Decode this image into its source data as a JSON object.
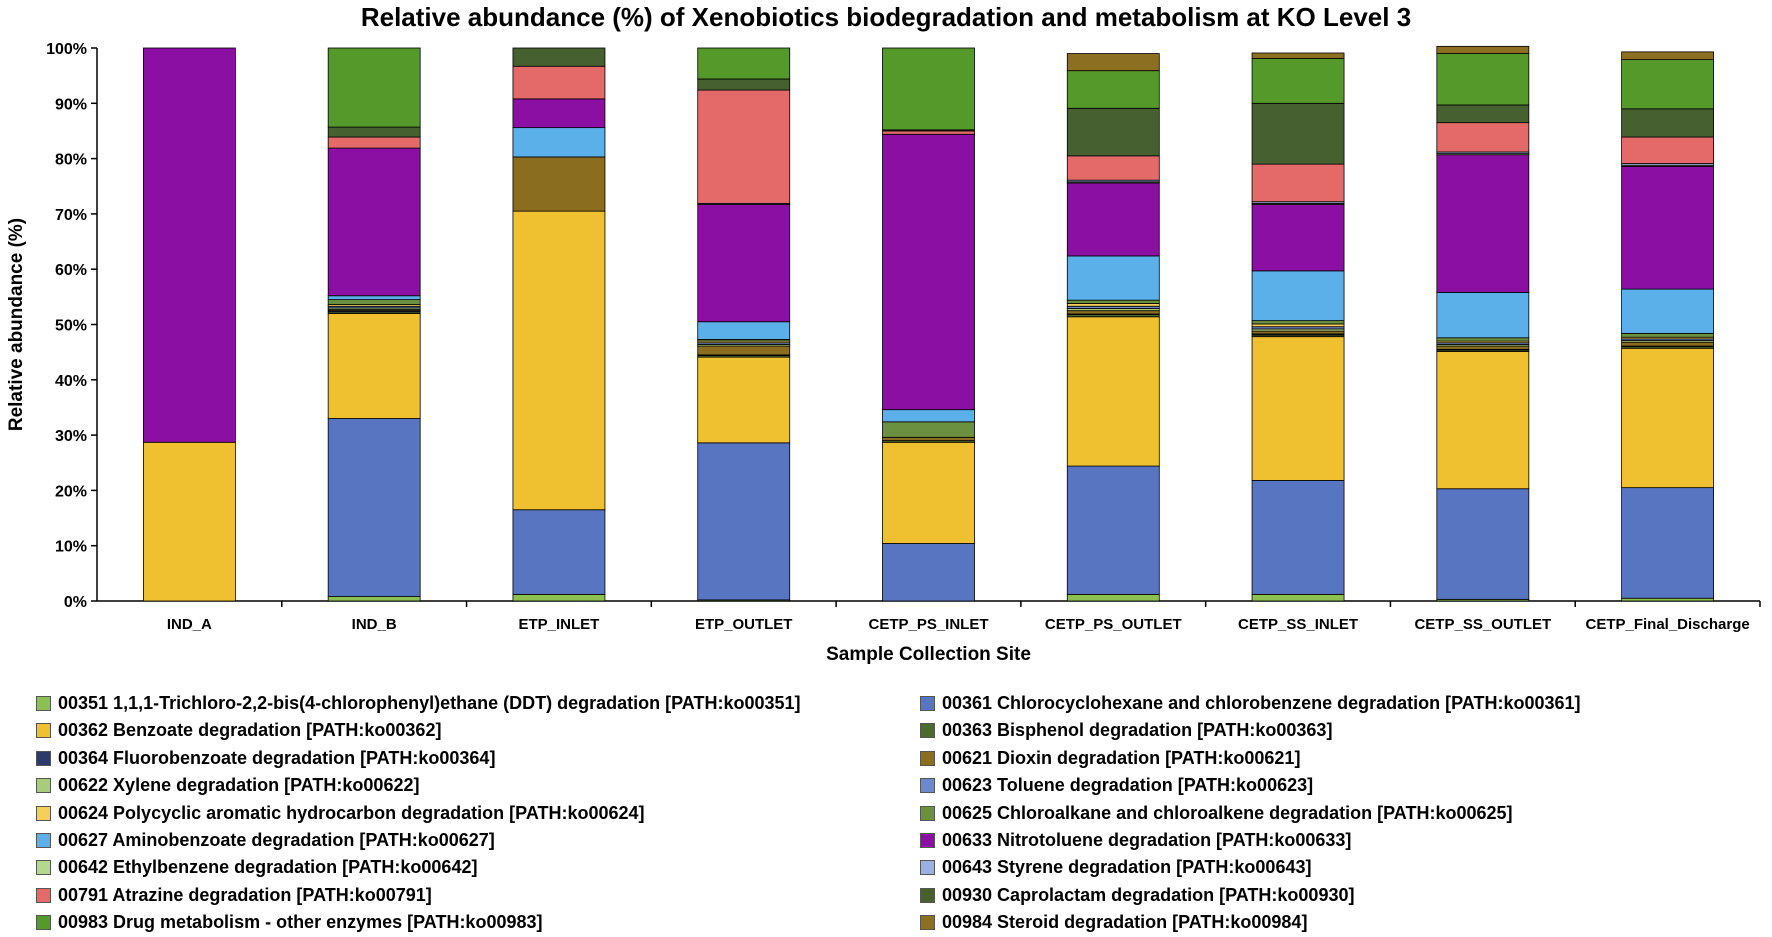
{
  "chart_data": {
    "type": "bar",
    "stacked": true,
    "title": "Relative abundance (%) of Xenobiotics biodegradation and metabolism at KO Level 3",
    "xlabel": "Sample Collection Site",
    "ylabel": "Relative abundance (%)",
    "ylim": [
      0,
      100
    ],
    "yticks": [
      "0%",
      "10%",
      "20%",
      "30%",
      "40%",
      "50%",
      "60%",
      "70%",
      "80%",
      "90%",
      "100%"
    ],
    "grid": false,
    "legend_position": "bottom",
    "categories": [
      "IND_A",
      "IND_B",
      "ETP_INLET",
      "ETP_OUTLET",
      "CETP_PS_INLET",
      "CETP_PS_OUTLET",
      "CETP_SS_INLET",
      "CETP_SS_OUTLET",
      "CETP_Final_Discharge"
    ],
    "series": [
      {
        "name": "00351 1,1,1-Trichloro-2,2-bis(4-chlorophenyl)ethane (DDT) degradation [PATH:ko00351]",
        "color": "#8cc152",
        "values": [
          0,
          0.8,
          1.2,
          0.2,
          0,
          1.2,
          1.2,
          0.3,
          0.5
        ]
      },
      {
        "name": "00361 Chlorocyclohexane and chlorobenzene degradation [PATH:ko00361]",
        "color": "#5875c2",
        "values": [
          0,
          32.2,
          15.3,
          28.4,
          10.4,
          23.2,
          20.6,
          20.0,
          20.0
        ]
      },
      {
        "name": "00362 Benzoate degradation [PATH:ko00362]",
        "color": "#efc02f",
        "values": [
          28.7,
          19.0,
          54.0,
          15.5,
          18.3,
          27.0,
          26.0,
          24.8,
          25.2
        ]
      },
      {
        "name": "00363 Bisphenol degradation [PATH:ko00363]",
        "color": "#4a6a2f",
        "values": [
          0,
          0.3,
          0,
          0.3,
          0.3,
          0.4,
          0.3,
          0.3,
          0.3
        ]
      },
      {
        "name": "00364 Fluorobenzoate degradation [PATH:ko00364]",
        "color": "#2b3a6b",
        "values": [
          0,
          0.2,
          0,
          0.1,
          0,
          0.1,
          0.2,
          0.1,
          0.1
        ]
      },
      {
        "name": "00621 Dioxin degradation [PATH:ko00621]",
        "color": "#8a6d1e",
        "values": [
          0,
          0.2,
          9.8,
          1.6,
          0.6,
          0.6,
          0.5,
          0.6,
          0.7
        ]
      },
      {
        "name": "00622 Xylene degradation [PATH:ko00622]",
        "color": "#a8cc7a",
        "values": [
          0,
          0.3,
          0,
          0.3,
          0,
          0.4,
          0.4,
          0.3,
          0.3
        ]
      },
      {
        "name": "00623 Toluene degradation [PATH:ko00623]",
        "color": "#6f88cc",
        "values": [
          0,
          0.3,
          0,
          0.3,
          0,
          0.4,
          0.4,
          0.3,
          0.3
        ]
      },
      {
        "name": "00624 Polycyclic aromatic hydrocarbon degradation [PATH:ko00624]",
        "color": "#f5cf58",
        "values": [
          0,
          0.3,
          0,
          0.3,
          0,
          0.5,
          0.5,
          0.3,
          0.3
        ]
      },
      {
        "name": "00625 Chloroalkane and chloroalkene degradation [PATH:ko00625]",
        "color": "#6b9140",
        "values": [
          0,
          0.9,
          0,
          0.3,
          2.8,
          0.6,
          0.6,
          0.6,
          0.7
        ]
      },
      {
        "name": "00627 Aminobenzoate degradation [PATH:ko00627]",
        "color": "#5cb0ea",
        "values": [
          0,
          0.7,
          5.3,
          3.2,
          2.2,
          8.0,
          9.0,
          8.2,
          8.0
        ]
      },
      {
        "name": "00633 Nitrotoluene degradation [PATH:ko00633]",
        "color": "#8b0fa3",
        "values": [
          71.3,
          26.7,
          5.2,
          21.2,
          49.8,
          13.2,
          12.0,
          24.9,
          22.2
        ]
      },
      {
        "name": "00642 Ethylbenzene degradation [PATH:ko00642]",
        "color": "#b5d88e",
        "values": [
          0,
          0,
          0,
          0,
          0,
          0.2,
          0.2,
          0.2,
          0.2
        ]
      },
      {
        "name": "00643 Styrene degradation [PATH:ko00643]",
        "color": "#9bb0e0",
        "values": [
          0,
          0,
          0,
          0.2,
          0,
          0.3,
          0.3,
          0.3,
          0.3
        ]
      },
      {
        "name": "00791 Atrazine degradation [PATH:ko00791]",
        "color": "#e46a6a",
        "values": [
          0,
          2.0,
          5.9,
          20.5,
          0.6,
          4.4,
          6.8,
          5.3,
          4.8
        ]
      },
      {
        "name": "00930 Caprolactam degradation [PATH:ko00930]",
        "color": "#466030",
        "values": [
          0,
          1.8,
          3.3,
          2.0,
          0.2,
          8.6,
          11.0,
          3.2,
          5.1
        ]
      },
      {
        "name": "00983 Drug metabolism - other enzymes [PATH:ko00983]",
        "color": "#55992b",
        "values": [
          0,
          14.3,
          0,
          5.6,
          14.8,
          6.8,
          8.1,
          9.3,
          8.9
        ]
      },
      {
        "name": "00984 Steroid degradation [PATH:ko00984]",
        "color": "#8d6f22",
        "values": [
          0,
          0,
          0,
          0,
          0,
          3.1,
          1.0,
          1.3,
          1.4
        ]
      }
    ]
  }
}
